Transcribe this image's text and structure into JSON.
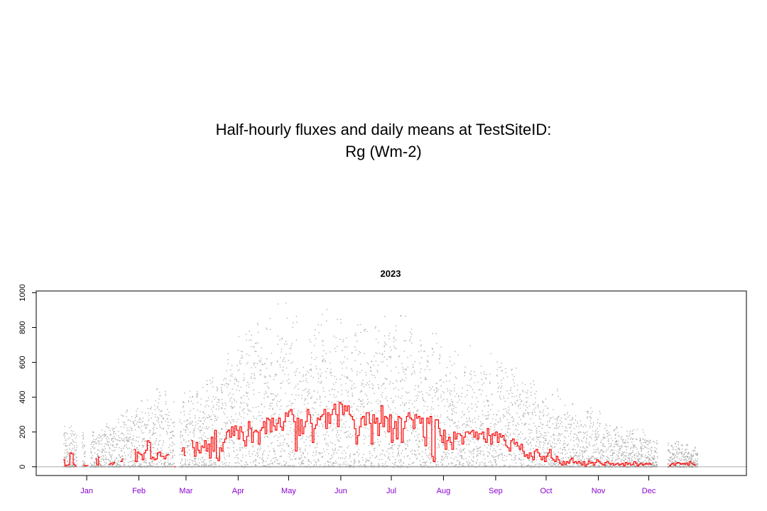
{
  "page": {
    "title_line1": "Half-hourly fluxes and daily means at TestSiteID:",
    "title_line2": "Rg (Wm-2)"
  },
  "chart_data": {
    "type": "line",
    "title": "2023",
    "xlabel": "",
    "ylabel": "",
    "xlim": [
      -30,
      392
    ],
    "ylim": [
      -50,
      1010
    ],
    "yticks": [
      0,
      200,
      400,
      600,
      800,
      1000
    ],
    "month_labels": [
      "Jan",
      "Feb",
      "Mar",
      "Apr",
      "May",
      "Jun",
      "Jul",
      "Aug",
      "Sep",
      "Oct",
      "Nov",
      "Dec"
    ],
    "month_positions": [
      0,
      31,
      59,
      90,
      120,
      151,
      181,
      212,
      243,
      273,
      304,
      334
    ],
    "grid": false,
    "reference_line_y": 0,
    "colors": {
      "daily_mean": "#ff0000",
      "half_hourly": "#9a9a9a",
      "month_labels": "#8b00d0",
      "axis": "#000000",
      "reference_line": "#aaaaaa"
    },
    "series": [
      {
        "kind": "daily-mean-step",
        "segments": [
          {
            "start_day": -14,
            "values": [
              40,
              5,
              10,
              12,
              80,
              75,
              15,
              5
            ]
          },
          {
            "start_day": -2,
            "values": [
              10,
              5,
              8
            ]
          },
          {
            "start_day": 5,
            "values": [
              45,
              10,
              55
            ]
          },
          {
            "start_day": 13,
            "values": [
              15,
              20,
              15,
              25
            ]
          },
          {
            "start_day": 20,
            "values": [
              30,
              45
            ]
          },
          {
            "start_day": 28,
            "values": [
              100,
              30,
              85,
              75,
              70,
              40,
              80,
              95,
              150,
              140,
              45,
              55,
              40,
              45,
              80,
              85,
              60,
              60,
              45,
              65,
              70
            ]
          },
          {
            "start_day": 52,
            "values": [
              0
            ]
          },
          {
            "start_day": 56,
            "values": [
              90,
              110,
              65
            ]
          },
          {
            "start_day": 62,
            "values": [
              150,
              110,
              60,
              140,
              95,
              80,
              120,
              110,
              150,
              90,
              130,
              50,
              170,
              90,
              210,
              50,
              35,
              110,
              90,
              140,
              160,
              200,
              210,
              170,
              230,
              180,
              235,
              210,
              160,
              230,
              200,
              150,
              120,
              175,
              260,
              220,
              140,
              200,
              210,
              200,
              130,
              210,
              225,
              260,
              190,
              280,
              270,
              200,
              280,
              235,
              210,
              250,
              280,
              230,
              210,
              260,
              310,
              290,
              320,
              330,
              300,
              260,
              90,
              280,
              180,
              270,
              190,
              230,
              260,
              330,
              300,
              250,
              140,
              220,
              240,
              280,
              270,
              290,
              300,
              330,
              220,
              310,
              250,
              300,
              330,
              360,
              300,
              230,
              370,
              360,
              300,
              350,
              320,
              350,
              300,
              290,
              270,
              220,
              130,
              180,
              230,
              280,
              290,
              240,
              310,
              310,
              250,
              130,
              300,
              250,
              280,
              180,
              250,
              350,
              230,
              290,
              280,
              200,
              300,
              140,
              220,
              260,
              160,
              290,
              280,
              140,
              220,
              260,
              290,
              310,
              280,
              270,
              220,
              300,
              280,
              290,
              250,
              280,
              170,
              120,
              280,
              250,
              290,
              60,
              30,
              270,
              270,
              220,
              180,
              140,
              210,
              100,
              150,
              170,
              140,
              100,
              200,
              160,
              190,
              190,
              180,
              130,
              170,
              200,
              200,
              190,
              200,
              210,
              170,
              200,
              160,
              190,
              190,
              200,
              160,
              140,
              220,
              180,
              130,
              190,
              180,
              200,
              140,
              190,
              170,
              180,
              150,
              120,
              110,
              90,
              150,
              160,
              130,
              140,
              120,
              100,
              130,
              90,
              60,
              70,
              50,
              80,
              60,
              40,
              90,
              100,
              80,
              60,
              40,
              60,
              30,
              60,
              80,
              100,
              50,
              40,
              30,
              60,
              40,
              20,
              10,
              30,
              15,
              30,
              20,
              40,
              50,
              25,
              30,
              20,
              30,
              20,
              10,
              30,
              5,
              15,
              35,
              20,
              25,
              10,
              25,
              40,
              30,
              20,
              15,
              10,
              25,
              30,
              20,
              15,
              20,
              10,
              15,
              20,
              10,
              15,
              20,
              5,
              25,
              15,
              20,
              10,
              15,
              30,
              20,
              5,
              15,
              20,
              10,
              15,
              20,
              15,
              20,
              15
            ]
          },
          {
            "start_day": 346,
            "values": [
              5,
              15,
              20,
              10,
              20,
              25,
              20,
              15,
              20,
              15,
              20,
              10,
              30,
              20,
              15,
              10
            ]
          }
        ]
      }
    ],
    "half_hourly_envelope": {
      "description_note": "",
      "peak_values": [
        {
          "x": -15,
          "y": 280
        },
        {
          "x": 5,
          "y": 250
        },
        {
          "x": 26,
          "y": 400
        },
        {
          "x": 45,
          "y": 550
        },
        {
          "x": 57,
          "y": 470
        },
        {
          "x": 74,
          "y": 600
        },
        {
          "x": 90,
          "y": 820
        },
        {
          "x": 110,
          "y": 940
        },
        {
          "x": 131,
          "y": 970
        },
        {
          "x": 155,
          "y": 945
        },
        {
          "x": 181,
          "y": 930
        },
        {
          "x": 212,
          "y": 800
        },
        {
          "x": 243,
          "y": 680
        },
        {
          "x": 260,
          "y": 560
        },
        {
          "x": 273,
          "y": 490
        },
        {
          "x": 300,
          "y": 350
        },
        {
          "x": 320,
          "y": 270
        },
        {
          "x": 345,
          "y": 180
        },
        {
          "x": 365,
          "y": 120
        }
      ]
    }
  }
}
